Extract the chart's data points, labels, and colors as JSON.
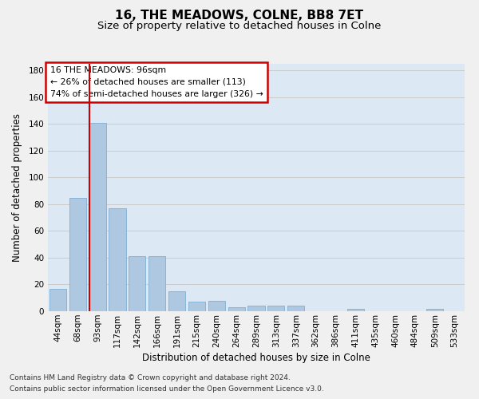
{
  "title1": "16, THE MEADOWS, COLNE, BB8 7ET",
  "title2": "Size of property relative to detached houses in Colne",
  "xlabel": "Distribution of detached houses by size in Colne",
  "ylabel": "Number of detached properties",
  "categories": [
    "44sqm",
    "68sqm",
    "93sqm",
    "117sqm",
    "142sqm",
    "166sqm",
    "191sqm",
    "215sqm",
    "240sqm",
    "264sqm",
    "289sqm",
    "313sqm",
    "337sqm",
    "362sqm",
    "386sqm",
    "411sqm",
    "435sqm",
    "460sqm",
    "484sqm",
    "509sqm",
    "533sqm"
  ],
  "values": [
    17,
    85,
    141,
    77,
    41,
    41,
    15,
    7,
    8,
    3,
    4,
    4,
    4,
    0,
    0,
    2,
    0,
    0,
    0,
    2,
    0
  ],
  "bar_color": "#adc8e0",
  "bar_edgecolor": "#80afd4",
  "highlight_index": 2,
  "ylim": [
    0,
    185
  ],
  "yticks": [
    0,
    20,
    40,
    60,
    80,
    100,
    120,
    140,
    160,
    180
  ],
  "annotation_lines": [
    "16 THE MEADOWS: 96sqm",
    "← 26% of detached houses are smaller (113)",
    "74% of semi-detached houses are larger (326) →"
  ],
  "annotation_box_facecolor": "#ffffff",
  "annotation_box_edgecolor": "#cc0000",
  "grid_color": "#cccccc",
  "background_color": "#dde8f5",
  "fig_facecolor": "#f0f0f0",
  "footer_line1": "Contains HM Land Registry data © Crown copyright and database right 2024.",
  "footer_line2": "Contains public sector information licensed under the Open Government Licence v3.0.",
  "title1_fontsize": 11,
  "title2_fontsize": 9.5,
  "xlabel_fontsize": 8.5,
  "ylabel_fontsize": 8.5,
  "tick_fontsize": 7.5,
  "footer_fontsize": 6.5
}
